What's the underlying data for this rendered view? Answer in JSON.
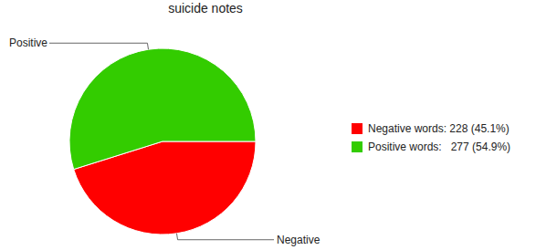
{
  "chart_data": {
    "type": "pie",
    "title": "suicide notes",
    "categories": [
      "Negative",
      "Positive"
    ],
    "values": [
      228,
      277
    ],
    "colors": [
      "#ff0000",
      "#33cc00"
    ],
    "legend_labels": [
      "Negative words: 228 (45.1%)",
      "Positive words:   277 (54.9%)"
    ],
    "legend": "right"
  }
}
